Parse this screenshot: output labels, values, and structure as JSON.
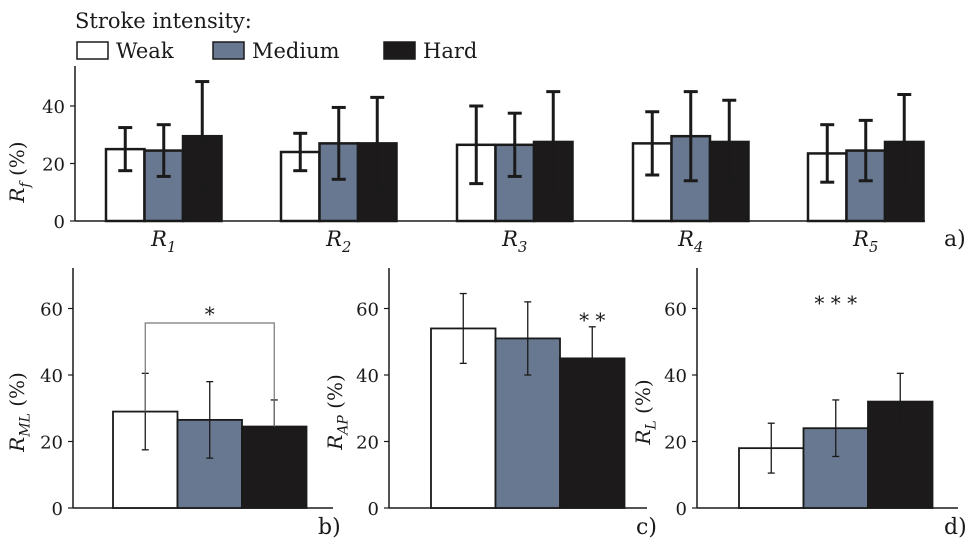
{
  "legend": {
    "title": "Stroke intensity:",
    "items": [
      {
        "label": "Weak",
        "color": "#ffffff"
      },
      {
        "label": "Medium",
        "color": "#687890"
      },
      {
        "label": "Hard",
        "color": "#1c1a1a"
      }
    ]
  },
  "chart_data": [
    {
      "type": "bar",
      "panel_label": "a)",
      "ylabel": {
        "main": "R",
        "sub": "f",
        "unit": " (%)"
      },
      "ylim": [
        0,
        55
      ],
      "yticks": [
        0,
        20,
        40
      ],
      "categories": [
        {
          "main": "R",
          "sub": "1"
        },
        {
          "main": "R",
          "sub": "2"
        },
        {
          "main": "R",
          "sub": "3"
        },
        {
          "main": "R",
          "sub": "4"
        },
        {
          "main": "R",
          "sub": "5"
        }
      ],
      "series": [
        {
          "name": "Weak",
          "values": [
            25,
            24,
            26.5,
            27,
            23.5
          ],
          "err": [
            7.5,
            6.5,
            13.5,
            11,
            10
          ]
        },
        {
          "name": "Medium",
          "values": [
            24.5,
            27,
            26.5,
            29.5,
            24.5
          ],
          "err": [
            9,
            12.5,
            11,
            15.5,
            10.5
          ]
        },
        {
          "name": "Hard",
          "values": [
            29.5,
            27,
            27.5,
            27.5,
            27.5
          ],
          "err": [
            19,
            16,
            17.5,
            14.5,
            16.5
          ]
        }
      ]
    },
    {
      "type": "bar",
      "panel_label": "b)",
      "ylabel": {
        "main": "R",
        "sub": "ML",
        "unit": " (%)"
      },
      "ylim": [
        0,
        75
      ],
      "yticks": [
        0,
        20,
        40,
        60
      ],
      "series": [
        {
          "name": "Weak",
          "values": [
            29
          ],
          "err": [
            11.5
          ]
        },
        {
          "name": "Medium",
          "values": [
            26.5
          ],
          "err": [
            11.5
          ]
        },
        {
          "name": "Hard",
          "values": [
            24.5
          ],
          "err": [
            8
          ]
        }
      ],
      "annotation": "*"
    },
    {
      "type": "bar",
      "panel_label": "c)",
      "ylabel": {
        "main": "R",
        "sub": "AP",
        "unit": " (%)"
      },
      "ylim": [
        0,
        75
      ],
      "yticks": [
        0,
        20,
        40,
        60
      ],
      "series": [
        {
          "name": "Weak",
          "values": [
            54
          ],
          "err": [
            10.5
          ]
        },
        {
          "name": "Medium",
          "values": [
            51
          ],
          "err": [
            11
          ]
        },
        {
          "name": "Hard",
          "values": [
            45
          ],
          "err": [
            9.5
          ]
        }
      ],
      "annotation": "* *"
    },
    {
      "type": "bar",
      "panel_label": "d)",
      "ylabel": {
        "main": "R",
        "sub": "L",
        "unit": " (%)"
      },
      "ylim": [
        0,
        75
      ],
      "yticks": [
        0,
        20,
        40,
        60
      ],
      "series": [
        {
          "name": "Weak",
          "values": [
            18
          ],
          "err": [
            7.5
          ]
        },
        {
          "name": "Medium",
          "values": [
            24
          ],
          "err": [
            8.5
          ]
        },
        {
          "name": "Hard",
          "values": [
            32
          ],
          "err": [
            8.5
          ]
        }
      ],
      "annotation": "* * *"
    }
  ]
}
